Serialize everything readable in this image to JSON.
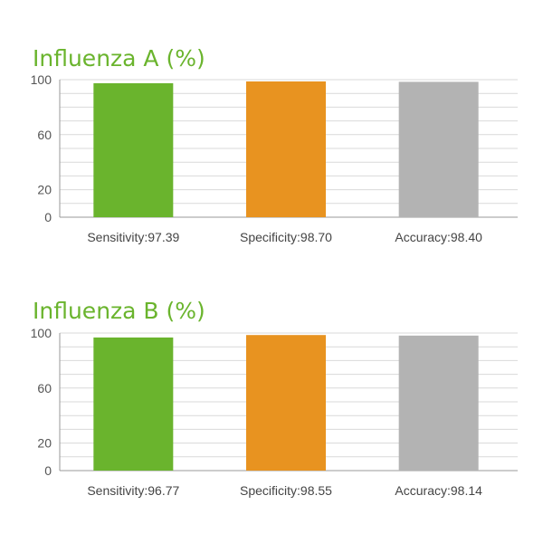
{
  "chart_data": [
    {
      "type": "bar",
      "title": "Influenza A (%)",
      "categories": [
        "Sensitivity:97.39",
        "Specificity:98.70",
        "Accuracy:98.40"
      ],
      "values": [
        97.39,
        98.7,
        98.4
      ],
      "colors": [
        "#6ab42d",
        "#e89320",
        "#b3b3b3"
      ],
      "yticks": [
        0,
        20,
        60,
        100
      ],
      "ylim": [
        0,
        100
      ],
      "grid": true,
      "xlabel": "",
      "ylabel": ""
    },
    {
      "type": "bar",
      "title": "Influenza B (%)",
      "categories": [
        "Sensitivity:96.77",
        "Specificity:98.55",
        "Accuracy:98.14"
      ],
      "values": [
        96.77,
        98.55,
        98.14
      ],
      "colors": [
        "#6ab42d",
        "#e89320",
        "#b3b3b3"
      ],
      "yticks": [
        0,
        20,
        60,
        100
      ],
      "ylim": [
        0,
        100
      ],
      "grid": true,
      "xlabel": "",
      "ylabel": ""
    }
  ],
  "style": {
    "title_color": "#6ab42d",
    "grid_color": "#d9d9d9",
    "axis_color": "#999999"
  }
}
